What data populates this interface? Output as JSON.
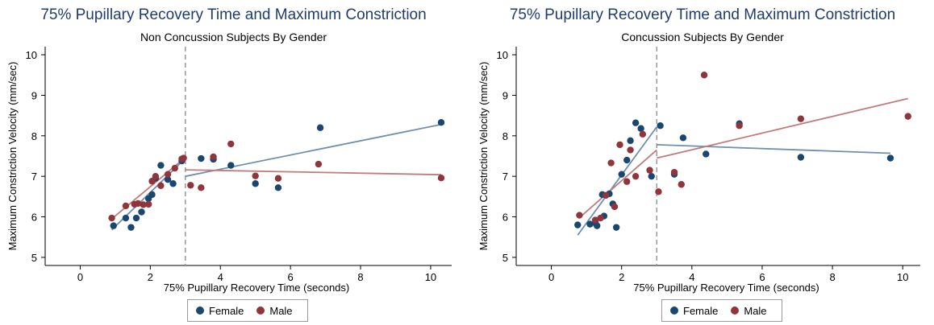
{
  "chart_data": [
    {
      "type": "scatter",
      "title": "75% Pupillary Recovery Time and Maximum Constriction",
      "subtitle": "Non Concussion Subjects By Gender",
      "xlabel": "75% Pupillary Recovery Time (seconds)",
      "ylabel": "Maximum Constriction Velocity (mm/sec)",
      "xlim": [
        -1,
        10.6
      ],
      "ylim": [
        4.8,
        10.2
      ],
      "xticks": [
        "0",
        "2",
        "4",
        "6",
        "8",
        "10"
      ],
      "yticks": [
        "5",
        "6",
        "7",
        "8",
        "9",
        "10"
      ],
      "grid": false,
      "legend_position": "bottom",
      "vline_x": 3,
      "colors": {
        "Female": "#1a476f",
        "Male": "#90353b",
        "FemaleLine": "#6e8fae",
        "MaleLine": "#c07b7d"
      },
      "series": [
        {
          "name": "Female",
          "points": [
            [
              0.95,
              5.78
            ],
            [
              1.3,
              5.97
            ],
            [
              1.45,
              5.74
            ],
            [
              1.6,
              5.97
            ],
            [
              1.75,
              6.12
            ],
            [
              1.95,
              6.45
            ],
            [
              2.05,
              6.55
            ],
            [
              2.15,
              6.95
            ],
            [
              2.3,
              7.27
            ],
            [
              2.5,
              6.92
            ],
            [
              2.65,
              6.82
            ],
            [
              2.9,
              7.38
            ],
            [
              3.45,
              7.44
            ],
            [
              3.8,
              7.42
            ],
            [
              4.3,
              7.27
            ],
            [
              5.0,
              6.82
            ],
            [
              5.65,
              6.72
            ],
            [
              6.85,
              8.2
            ],
            [
              10.3,
              8.33
            ]
          ]
        },
        {
          "name": "Male",
          "points": [
            [
              0.9,
              5.97
            ],
            [
              1.3,
              6.27
            ],
            [
              1.55,
              6.31
            ],
            [
              1.65,
              6.33
            ],
            [
              1.8,
              6.3
            ],
            [
              1.95,
              6.31
            ],
            [
              2.05,
              6.88
            ],
            [
              2.15,
              7.0
            ],
            [
              2.3,
              6.77
            ],
            [
              2.5,
              7.05
            ],
            [
              2.7,
              7.2
            ],
            [
              2.9,
              7.43
            ],
            [
              2.95,
              7.45
            ],
            [
              3.15,
              6.78
            ],
            [
              3.45,
              6.72
            ],
            [
              3.8,
              7.48
            ],
            [
              4.3,
              7.8
            ],
            [
              5.0,
              7.01
            ],
            [
              5.65,
              6.95
            ],
            [
              6.8,
              7.3
            ],
            [
              10.3,
              6.96
            ]
          ]
        }
      ],
      "fits": [
        {
          "series": "Female",
          "segments": [
            [
              [
                0.9,
                5.68
              ],
              [
                2.95,
                7.4
              ]
            ],
            [
              [
                3.0,
                7.0
              ],
              [
                10.3,
                8.28
              ]
            ]
          ]
        },
        {
          "series": "Male",
          "segments": [
            [
              [
                0.9,
                5.95
              ],
              [
                2.95,
                7.43
              ]
            ],
            [
              [
                3.0,
                7.16
              ],
              [
                10.3,
                7.04
              ]
            ]
          ]
        }
      ]
    },
    {
      "type": "scatter",
      "title": "75% Pupillary Recovery Time and Maximum Constriction",
      "subtitle": "Concussion Subjects By Gender",
      "xlabel": "75% Pupillary Recovery Time (seconds)",
      "ylabel": "Maximum Constriction Velocity (mm/sec)",
      "xlim": [
        -1,
        10.5
      ],
      "ylim": [
        4.8,
        10.2
      ],
      "xticks": [
        "0",
        "2",
        "4",
        "6",
        "8",
        "10"
      ],
      "yticks": [
        "5",
        "6",
        "7",
        "8",
        "9",
        "10"
      ],
      "grid": false,
      "legend_position": "bottom",
      "vline_x": 3,
      "colors": {
        "Female": "#1a476f",
        "Male": "#90353b",
        "FemaleLine": "#6e8fae",
        "MaleLine": "#c07b7d"
      },
      "series": [
        {
          "name": "Female",
          "points": [
            [
              0.75,
              5.8
            ],
            [
              1.1,
              5.82
            ],
            [
              1.25,
              5.85
            ],
            [
              1.3,
              5.78
            ],
            [
              1.5,
              6.02
            ],
            [
              1.45,
              6.55
            ],
            [
              1.65,
              6.57
            ],
            [
              1.75,
              6.32
            ],
            [
              1.85,
              5.74
            ],
            [
              2.0,
              7.05
            ],
            [
              2.15,
              7.4
            ],
            [
              2.25,
              7.88
            ],
            [
              2.4,
              8.32
            ],
            [
              2.55,
              8.18
            ],
            [
              2.85,
              7.0
            ],
            [
              3.1,
              8.25
            ],
            [
              3.5,
              7.05
            ],
            [
              3.75,
              7.95
            ],
            [
              4.4,
              7.55
            ],
            [
              5.35,
              8.3
            ],
            [
              7.1,
              7.47
            ],
            [
              9.65,
              7.45
            ]
          ]
        },
        {
          "name": "Male",
          "points": [
            [
              0.8,
              6.04
            ],
            [
              1.25,
              5.92
            ],
            [
              1.4,
              5.97
            ],
            [
              1.55,
              6.53
            ],
            [
              1.7,
              7.33
            ],
            [
              1.8,
              6.25
            ],
            [
              1.95,
              7.78
            ],
            [
              2.15,
              6.87
            ],
            [
              2.25,
              7.65
            ],
            [
              2.4,
              7.0
            ],
            [
              2.6,
              8.04
            ],
            [
              2.8,
              7.15
            ],
            [
              3.05,
              6.62
            ],
            [
              3.5,
              7.1
            ],
            [
              3.7,
              6.8
            ],
            [
              4.35,
              9.5
            ],
            [
              5.35,
              8.25
            ],
            [
              7.1,
              8.42
            ],
            [
              10.15,
              8.48
            ]
          ]
        }
      ],
      "fits": [
        {
          "series": "Female",
          "segments": [
            [
              [
                0.75,
                5.55
              ],
              [
                3.0,
                8.22
              ]
            ],
            [
              [
                3.0,
                7.78
              ],
              [
                9.65,
                7.57
              ]
            ]
          ]
        },
        {
          "series": "Male",
          "segments": [
            [
              [
                0.8,
                5.98
              ],
              [
                3.0,
                7.65
              ]
            ],
            [
              [
                3.0,
                7.45
              ],
              [
                10.15,
                8.92
              ]
            ]
          ]
        }
      ]
    }
  ]
}
